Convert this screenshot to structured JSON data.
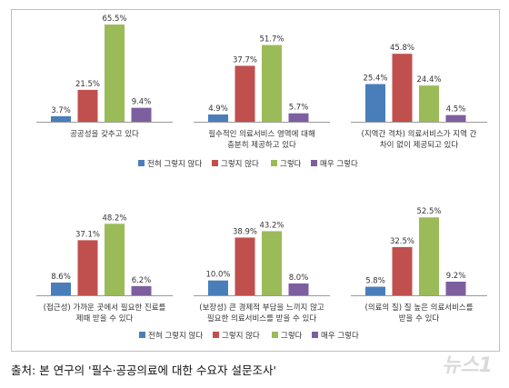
{
  "colors": {
    "series": [
      "#4a7ebb",
      "#c0504d",
      "#9bbb59",
      "#7d5fa0"
    ],
    "axis": "#9a9a9a",
    "label": "#333333"
  },
  "chart_data": [
    {
      "type": "bar",
      "categories": [
        "공공성을 갖추고 있다"
      ],
      "series": [
        {
          "name": "전혀 그렇지 않다",
          "values": [
            3.7
          ]
        },
        {
          "name": "그렇지 않다",
          "values": [
            21.5
          ]
        },
        {
          "name": "그렇다",
          "values": [
            65.5
          ]
        },
        {
          "name": "매우 그렇다",
          "values": [
            9.4
          ]
        }
      ],
      "labels": [
        "3.7%",
        "21.5%",
        "65.5%",
        "9.4%"
      ],
      "ylim": [
        0,
        70
      ]
    },
    {
      "type": "bar",
      "categories": [
        "필수적인 의료서비스 영역에 대해 충분히 제공하고 있다"
      ],
      "series": [
        {
          "name": "전혀 그렇지 않다",
          "values": [
            4.9
          ]
        },
        {
          "name": "그렇지 않다",
          "values": [
            37.7
          ]
        },
        {
          "name": "그렇다",
          "values": [
            51.7
          ]
        },
        {
          "name": "매우 그렇다",
          "values": [
            5.7
          ]
        }
      ],
      "labels": [
        "4.9%",
        "37.7%",
        "51.7%",
        "5.7%"
      ],
      "ylim": [
        0,
        70
      ]
    },
    {
      "type": "bar",
      "categories": [
        "(지역간 격차) 의료서비스가 지역 간 차이 없이 제공되고 있다"
      ],
      "series": [
        {
          "name": "전혀 그렇지 않다",
          "values": [
            25.4
          ]
        },
        {
          "name": "그렇지 않다",
          "values": [
            45.8
          ]
        },
        {
          "name": "그렇다",
          "values": [
            24.4
          ]
        },
        {
          "name": "매우 그렇다",
          "values": [
            4.5
          ]
        }
      ],
      "labels": [
        "25.4%",
        "45.8%",
        "24.4%",
        "4.5%"
      ],
      "ylim": [
        0,
        70
      ]
    },
    {
      "type": "bar",
      "categories": [
        "(접근성) 가까운 곳에서 필요한 진료를 제때 받을 수 있다"
      ],
      "series": [
        {
          "name": "전혀 그렇지 않다",
          "values": [
            8.6
          ]
        },
        {
          "name": "그렇지 않다",
          "values": [
            37.1
          ]
        },
        {
          "name": "그렇다",
          "values": [
            48.2
          ]
        },
        {
          "name": "매우 그렇다",
          "values": [
            6.2
          ]
        }
      ],
      "labels": [
        "8.6%",
        "37.1%",
        "48.2%",
        "6.2%"
      ],
      "ylim": [
        0,
        70
      ]
    },
    {
      "type": "bar",
      "categories": [
        "(보장성) 큰 경제적 부담을 느끼지 않고 필요한 의료서비스를 받을 수 있다"
      ],
      "series": [
        {
          "name": "전혀 그렇지 않다",
          "values": [
            10.0
          ]
        },
        {
          "name": "그렇지 않다",
          "values": [
            38.9
          ]
        },
        {
          "name": "그렇다",
          "values": [
            43.2
          ]
        },
        {
          "name": "매우 그렇다",
          "values": [
            8.0
          ]
        }
      ],
      "labels": [
        "10.0%",
        "38.9%",
        "43.2%",
        "8.0%"
      ],
      "ylim": [
        0,
        70
      ]
    },
    {
      "type": "bar",
      "categories": [
        "(의료의 질) 질 높은 의료서비스를 받을 수 있다"
      ],
      "series": [
        {
          "name": "전혀 그렇지 않다",
          "values": [
            5.8
          ]
        },
        {
          "name": "그렇지 않다",
          "values": [
            32.5
          ]
        },
        {
          "name": "그렇다",
          "values": [
            52.5
          ]
        },
        {
          "name": "매우 그렇다",
          "values": [
            9.2
          ]
        }
      ],
      "labels": [
        "5.8%",
        "32.5%",
        "52.5%",
        "9.2%"
      ],
      "ylim": [
        0,
        70
      ]
    }
  ],
  "category_lines": [
    [
      "공공성을 갖추고 있다"
    ],
    [
      "필수적인 의료서비스 영역에 대해",
      "충분히 제공하고 있다"
    ],
    [
      "(지역간 격차) 의료서비스가 지역 간",
      "차이 없이 제공되고 있다"
    ],
    [
      "(접근성) 가까운 곳에서 필요한 진료를",
      "제때 받을 수 있다"
    ],
    [
      "(보장성) 큰 경제적 부담을 느끼지 않고",
      "필요한 의료서비스를 받을 수 있다"
    ],
    [
      "(의료의 질) 질 높은 의료서비스를",
      "받을 수 있다"
    ]
  ],
  "legend": [
    "전혀 그렇지 않다",
    "그렇지 않다",
    "그렇다",
    "매우 그렇다"
  ],
  "source": "출처: 본 연구의 '필수·공공의료에 대한 수요자 설문조사'",
  "watermark": "뉴스1"
}
